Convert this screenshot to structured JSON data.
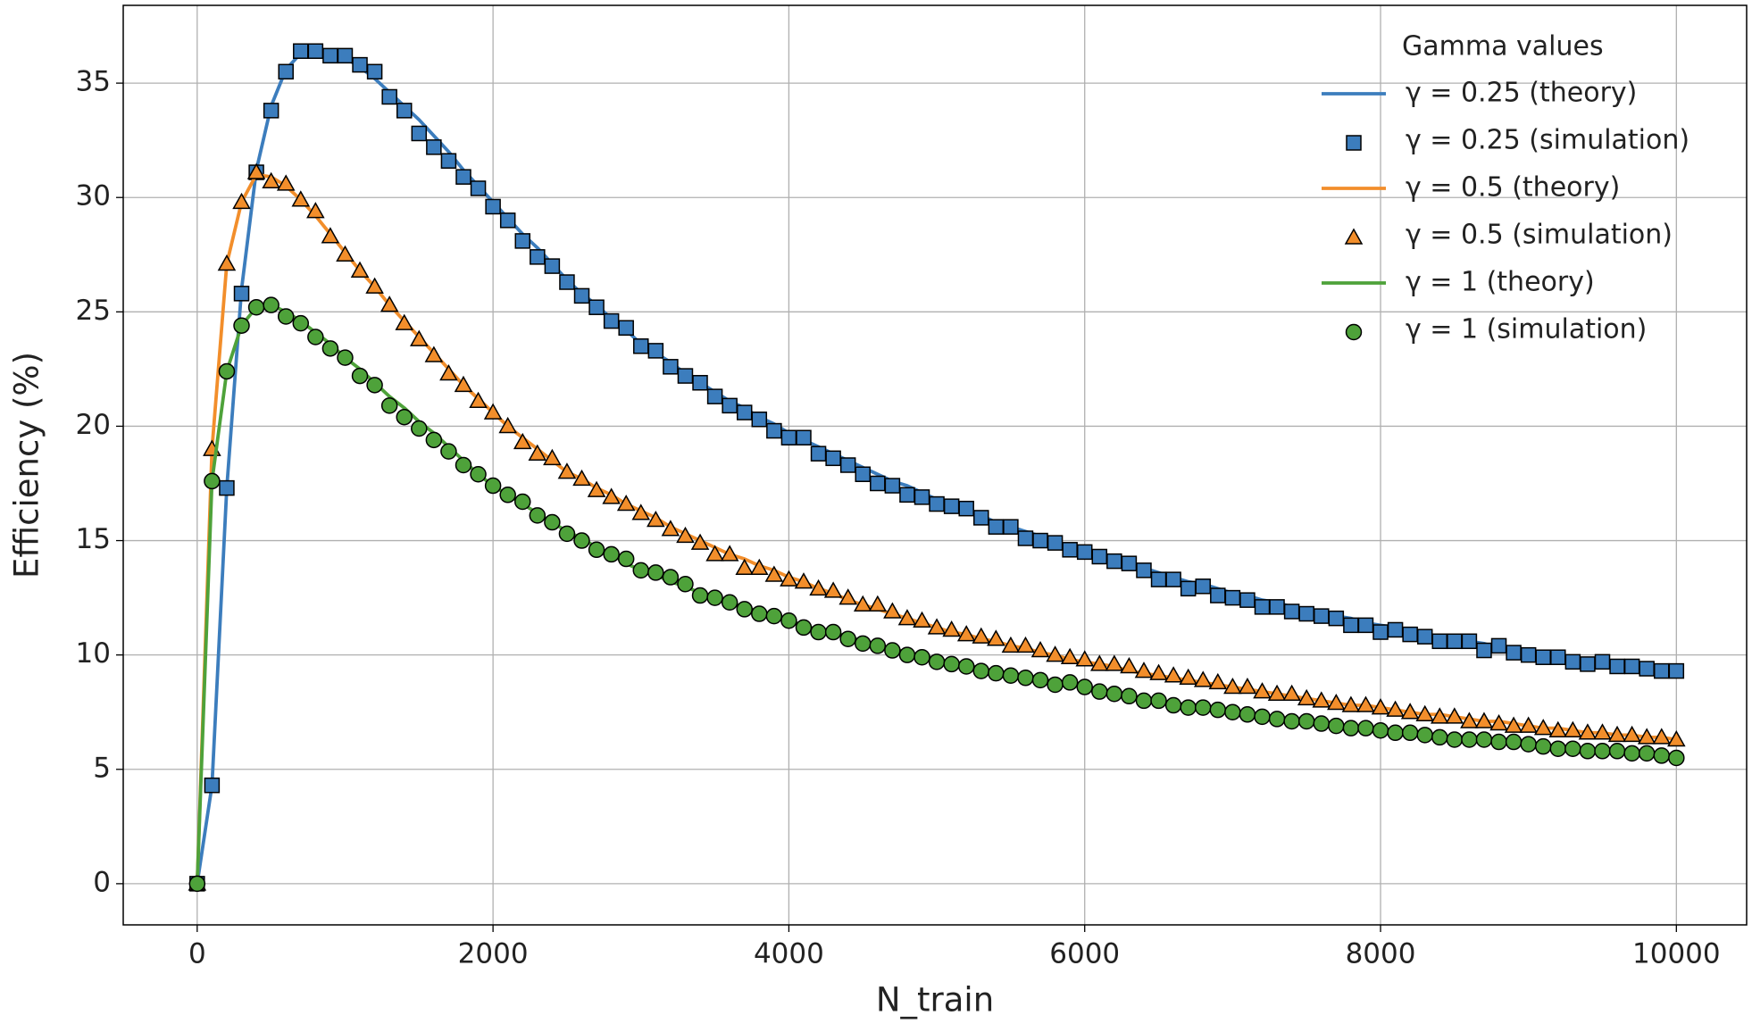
{
  "chart_data": {
    "type": "line",
    "xlabel": "N_train",
    "ylabel": "Efficiency (%)",
    "xlim": [
      -500,
      10475
    ],
    "ylim": [
      -1.8,
      38.4
    ],
    "xticks": [
      0,
      2000,
      4000,
      6000,
      8000,
      10000
    ],
    "yticks": [
      0,
      5,
      10,
      15,
      20,
      25,
      30,
      35
    ],
    "grid": true,
    "legend": {
      "title": "Gamma values",
      "loc": "upper right"
    },
    "x": [
      0,
      100,
      200,
      300,
      400,
      500,
      600,
      700,
      800,
      900,
      1000,
      1100,
      1200,
      1300,
      1400,
      1500,
      1600,
      1700,
      1800,
      1900,
      2000,
      2100,
      2200,
      2300,
      2400,
      2500,
      2600,
      2700,
      2800,
      2900,
      3000,
      3100,
      3200,
      3300,
      3400,
      3500,
      3600,
      3700,
      3800,
      3900,
      4000,
      4100,
      4200,
      4300,
      4400,
      4500,
      4600,
      4700,
      4800,
      4900,
      5000,
      5100,
      5200,
      5300,
      5400,
      5500,
      5600,
      5700,
      5800,
      5900,
      6000,
      6100,
      6200,
      6300,
      6400,
      6500,
      6600,
      6700,
      6800,
      6900,
      7000,
      7100,
      7200,
      7300,
      7400,
      7500,
      7600,
      7700,
      7800,
      7900,
      8000,
      8100,
      8200,
      8300,
      8400,
      8500,
      8600,
      8700,
      8800,
      8900,
      9000,
      9100,
      9200,
      9300,
      9400,
      9500,
      9600,
      9700,
      9800,
      9900,
      10000
    ],
    "series": [
      {
        "name": "γ = 0.25 (theory)",
        "color": "#3c7dbd",
        "mode": "line",
        "values": [
          0,
          4.3,
          17.3,
          26,
          31.2,
          34,
          35.6,
          36.3,
          36.5,
          36.4,
          36.1,
          35.7,
          35.2,
          34.6,
          34.0,
          33.4,
          32.7,
          32.0,
          31.2,
          30.5,
          29.8,
          29.1,
          28.4,
          27.8,
          27.1,
          26.4,
          25.8,
          25.3,
          24.7,
          24.2,
          23.6,
          23.2,
          22.8,
          22.3,
          21.9,
          21.5,
          21.1,
          20.8,
          20.4,
          20.1,
          19.7,
          19.4,
          19.1,
          18.8,
          18.5,
          18.2,
          17.9,
          17.6,
          17.4,
          17.1,
          16.8,
          16.6,
          16.3,
          16.1,
          15.8,
          15.6,
          15.4,
          15.2,
          14.9,
          14.7,
          14.5,
          14.3,
          14.1,
          13.9,
          13.8,
          13.6,
          13.4,
          13.2,
          13.1,
          12.9,
          12.7,
          12.6,
          12.4,
          12.3,
          12.1,
          12.0,
          11.9,
          11.7,
          11.6,
          11.4,
          11.3,
          11.2,
          11.1,
          10.9,
          10.8,
          10.7,
          10.6,
          10.5,
          10.3,
          10.2,
          10.1,
          10.0,
          9.9,
          9.8,
          9.7,
          9.6,
          9.5,
          9.4,
          9.4,
          9.3,
          9.2
        ]
      },
      {
        "name": "γ = 0.25 (simulation)",
        "color": "#3c7dbd",
        "mode": "markers",
        "marker": "square",
        "values": [
          0,
          4.3,
          17.3,
          25.8,
          31.1,
          33.8,
          35.5,
          36.4,
          36.4,
          36.2,
          36.2,
          35.8,
          35.5,
          34.4,
          33.8,
          32.8,
          32.2,
          31.6,
          30.9,
          30.4,
          29.6,
          29.0,
          28.1,
          27.4,
          27.0,
          26.3,
          25.7,
          25.2,
          24.6,
          24.3,
          23.5,
          23.3,
          22.6,
          22.2,
          21.9,
          21.3,
          20.9,
          20.6,
          20.3,
          19.8,
          19.5,
          19.5,
          18.8,
          18.6,
          18.3,
          17.9,
          17.5,
          17.4,
          17.0,
          16.9,
          16.6,
          16.5,
          16.4,
          16.0,
          15.6,
          15.6,
          15.1,
          15.0,
          14.9,
          14.6,
          14.5,
          14.3,
          14.1,
          14.0,
          13.7,
          13.3,
          13.3,
          12.9,
          13.0,
          12.6,
          12.5,
          12.4,
          12.1,
          12.1,
          11.9,
          11.8,
          11.7,
          11.6,
          11.3,
          11.3,
          11.0,
          11.1,
          10.9,
          10.8,
          10.6,
          10.6,
          10.6,
          10.2,
          10.4,
          10.1,
          10.0,
          9.9,
          9.9,
          9.7,
          9.6,
          9.7,
          9.5,
          9.5,
          9.4,
          9.3,
          9.3
        ]
      },
      {
        "name": "γ = 0.5 (theory)",
        "color": "#f28e2b",
        "mode": "line",
        "values": [
          0,
          19,
          27.1,
          29.8,
          31.0,
          30.9,
          30.5,
          29.9,
          29.2,
          28.4,
          27.6,
          26.8,
          26.1,
          25.3,
          24.6,
          23.9,
          23.2,
          22.5,
          21.8,
          21.2,
          20.6,
          20.0,
          19.5,
          19.0,
          18.5,
          18.0,
          17.7,
          17.3,
          17.0,
          16.6,
          16.3,
          16.0,
          15.6,
          15.3,
          15.0,
          14.7,
          14.4,
          14.2,
          13.9,
          13.7,
          13.4,
          13.2,
          12.9,
          12.7,
          12.4,
          12.2,
          12.0,
          11.8,
          11.6,
          11.4,
          11.2,
          11.0,
          10.9,
          10.7,
          10.6,
          10.4,
          10.3,
          10.1,
          10.0,
          9.8,
          9.7,
          9.6,
          9.5,
          9.3,
          9.2,
          9.1,
          9.0,
          8.9,
          8.8,
          8.7,
          8.6,
          8.5,
          8.4,
          8.3,
          8.2,
          8.1,
          8.0,
          7.9,
          7.8,
          7.8,
          7.7,
          7.6,
          7.5,
          7.4,
          7.4,
          7.3,
          7.2,
          7.1,
          7.1,
          7.0,
          6.9,
          6.8,
          6.8,
          6.7,
          6.6,
          6.6,
          6.5,
          6.5,
          6.4,
          6.4,
          6.3
        ]
      },
      {
        "name": "γ = 0.5 (simulation)",
        "color": "#f28e2b",
        "mode": "markers",
        "marker": "triangle",
        "values": [
          0,
          19.0,
          27.1,
          29.8,
          31.1,
          30.7,
          30.6,
          29.9,
          29.4,
          28.3,
          27.5,
          26.8,
          26.1,
          25.3,
          24.5,
          23.8,
          23.1,
          22.3,
          21.8,
          21.1,
          20.6,
          20.0,
          19.3,
          18.8,
          18.6,
          18.0,
          17.7,
          17.2,
          16.9,
          16.6,
          16.2,
          15.9,
          15.5,
          15.2,
          14.9,
          14.4,
          14.4,
          13.8,
          13.8,
          13.5,
          13.3,
          13.2,
          12.9,
          12.8,
          12.5,
          12.2,
          12.2,
          11.9,
          11.6,
          11.5,
          11.2,
          11.1,
          10.9,
          10.8,
          10.7,
          10.4,
          10.4,
          10.2,
          10.0,
          9.9,
          9.8,
          9.6,
          9.6,
          9.5,
          9.3,
          9.2,
          9.1,
          9.0,
          8.9,
          8.8,
          8.6,
          8.6,
          8.4,
          8.3,
          8.3,
          8.1,
          8.0,
          7.9,
          7.8,
          7.8,
          7.7,
          7.6,
          7.5,
          7.4,
          7.3,
          7.3,
          7.1,
          7.1,
          7.0,
          6.9,
          6.9,
          6.8,
          6.7,
          6.7,
          6.6,
          6.6,
          6.5,
          6.5,
          6.4,
          6.4,
          6.3
        ]
      },
      {
        "name": "γ = 1 (theory)",
        "color": "#4ea23a",
        "mode": "line",
        "values": [
          0,
          17.6,
          22.4,
          24.4,
          25.2,
          25.3,
          25.0,
          24.6,
          24.1,
          23.6,
          23.0,
          22.5,
          21.9,
          21.3,
          20.8,
          20.2,
          19.7,
          19.1,
          18.5,
          17.9,
          17.4,
          17.0,
          16.6,
          16.2,
          15.8,
          15.4,
          15.1,
          14.7,
          14.4,
          14.0,
          13.7,
          13.5,
          13.2,
          13.0,
          12.7,
          12.5,
          12.3,
          12.1,
          11.9,
          11.7,
          11.5,
          11.3,
          11.1,
          11.0,
          10.8,
          10.6,
          10.4,
          10.3,
          10.1,
          10.0,
          9.8,
          9.7,
          9.6,
          9.4,
          9.3,
          9.2,
          9.1,
          9.0,
          8.8,
          8.7,
          8.6,
          8.5,
          8.4,
          8.2,
          8.1,
          8.0,
          7.9,
          7.8,
          7.7,
          7.6,
          7.5,
          7.4,
          7.3,
          7.3,
          7.2,
          7.1,
          7.0,
          6.9,
          6.9,
          6.8,
          6.7,
          6.6,
          6.5,
          6.5,
          6.4,
          6.3,
          6.3,
          6.2,
          6.2,
          6.1,
          6.1,
          6.0,
          6.0,
          5.9,
          5.9,
          5.8,
          5.8,
          5.7,
          5.7,
          5.6,
          5.6
        ]
      },
      {
        "name": "γ = 1 (simulation)",
        "color": "#4ea23a",
        "mode": "markers",
        "marker": "circle",
        "values": [
          0,
          17.6,
          22.4,
          24.4,
          25.2,
          25.3,
          24.8,
          24.5,
          23.9,
          23.4,
          23.0,
          22.2,
          21.8,
          20.9,
          20.4,
          19.9,
          19.4,
          18.9,
          18.3,
          17.9,
          17.4,
          17.0,
          16.7,
          16.1,
          15.8,
          15.3,
          15.0,
          14.6,
          14.4,
          14.2,
          13.7,
          13.6,
          13.4,
          13.1,
          12.6,
          12.5,
          12.3,
          12.0,
          11.8,
          11.7,
          11.5,
          11.2,
          11.0,
          11.0,
          10.7,
          10.5,
          10.4,
          10.2,
          10.0,
          9.9,
          9.7,
          9.6,
          9.5,
          9.3,
          9.2,
          9.1,
          9.0,
          8.9,
          8.7,
          8.8,
          8.6,
          8.4,
          8.3,
          8.2,
          8.0,
          8.0,
          7.8,
          7.7,
          7.7,
          7.6,
          7.5,
          7.4,
          7.3,
          7.2,
          7.1,
          7.1,
          7.0,
          6.9,
          6.8,
          6.8,
          6.7,
          6.6,
          6.6,
          6.5,
          6.4,
          6.3,
          6.3,
          6.3,
          6.2,
          6.2,
          6.1,
          6.0,
          5.9,
          5.9,
          5.8,
          5.8,
          5.8,
          5.7,
          5.7,
          5.6,
          5.5
        ]
      }
    ]
  }
}
